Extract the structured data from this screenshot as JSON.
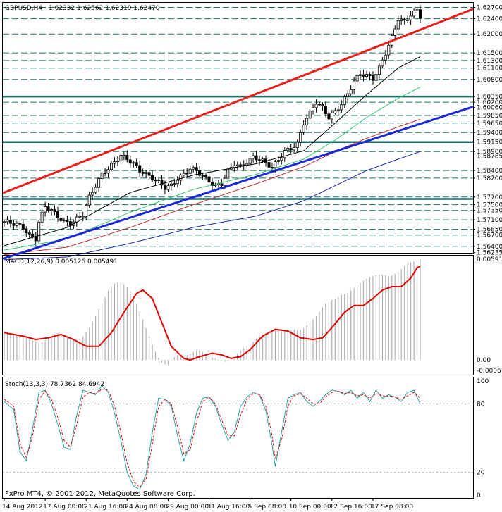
{
  "chart_data": [
    {
      "type": "candlestick",
      "panel": "price",
      "symbol_label": "GBPUSD,H4",
      "ohlc_label": "1.62332 1.62562 1.62319 1.62470",
      "price_axis_labels": [
        "1.62700",
        "1.62400",
        "1.62000",
        "1.61500",
        "1.61300",
        "1.61100",
        "1.60800",
        "1.60350",
        "1.60200",
        "1.60060",
        "1.59850",
        "1.59650",
        "1.59400",
        "1.59150",
        "1.58900",
        "1.58785",
        "1.58400",
        "1.58200",
        "1.57700",
        "1.57500",
        "1.57350",
        "1.57100",
        "1.56850",
        "1.56700",
        "1.56400",
        "1.56235"
      ],
      "ylim": [
        1.5623,
        1.6282
      ],
      "horizontal_levels": [
        1.627,
        1.624,
        1.62,
        1.615,
        1.613,
        1.611,
        1.608,
        1.6035,
        1.602,
        1.5985,
        1.5965,
        1.594,
        1.5915,
        1.589,
        1.584,
        1.582,
        1.577,
        1.575,
        1.5735,
        1.571,
        1.5685,
        1.567,
        1.564
      ],
      "strong_levels": [
        1.6035,
        1.5915,
        1.5765
      ],
      "trendlines": [
        {
          "color": "#e8201a",
          "from": [
            0,
            1.5782
          ],
          "to": [
            132,
            1.6211
          ]
        },
        {
          "color": "#1c28d8",
          "from": [
            8,
            1.563
          ],
          "to": [
            132,
            1.5963
          ]
        }
      ],
      "close_path": [
        [
          0,
          1.5705
        ],
        [
          2,
          1.5702
        ],
        [
          4,
          1.5698
        ],
        [
          6,
          1.569
        ],
        [
          8,
          1.5668
        ],
        [
          10,
          1.566
        ],
        [
          11,
          1.5705
        ],
        [
          13,
          1.5745
        ],
        [
          15,
          1.5735
        ],
        [
          17,
          1.5718
        ],
        [
          19,
          1.5705
        ],
        [
          21,
          1.57
        ],
        [
          23,
          1.5712
        ],
        [
          25,
          1.5725
        ],
        [
          27,
          1.577
        ],
        [
          29,
          1.58
        ],
        [
          31,
          1.583
        ],
        [
          33,
          1.5845
        ],
        [
          35,
          1.5862
        ],
        [
          37,
          1.588
        ],
        [
          39,
          1.587
        ],
        [
          41,
          1.5858
        ],
        [
          43,
          1.584
        ],
        [
          45,
          1.583
        ],
        [
          47,
          1.582
        ],
        [
          49,
          1.581
        ],
        [
          51,
          1.5795
        ],
        [
          53,
          1.58
        ],
        [
          55,
          1.5818
        ],
        [
          57,
          1.583
        ],
        [
          59,
          1.5845
        ],
        [
          61,
          1.584
        ],
        [
          63,
          1.5825
        ],
        [
          65,
          1.5812
        ],
        [
          67,
          1.5798
        ],
        [
          69,
          1.5805
        ],
        [
          71,
          1.5838
        ],
        [
          73,
          1.5858
        ],
        [
          75,
          1.585
        ],
        [
          77,
          1.5862
        ],
        [
          79,
          1.5875
        ],
        [
          81,
          1.587
        ],
        [
          83,
          1.586
        ],
        [
          85,
          1.5848
        ],
        [
          87,
          1.5868
        ],
        [
          89,
          1.589
        ],
        [
          91,
          1.5898
        ],
        [
          93,
          1.591
        ],
        [
          95,
          1.5965
        ],
        [
          97,
          1.5992
        ],
        [
          99,
          1.602
        ],
        [
          101,
          1.6005
        ],
        [
          103,
          1.598
        ],
        [
          105,
          1.5995
        ],
        [
          107,
          1.6015
        ],
        [
          109,
          1.6042
        ],
        [
          111,
          1.6075
        ],
        [
          113,
          1.6095
        ],
        [
          115,
          1.609
        ],
        [
          117,
          1.6082
        ],
        [
          119,
          1.611
        ],
        [
          121,
          1.615
        ],
        [
          123,
          1.619
        ],
        [
          125,
          1.624
        ],
        [
          127,
          1.6232
        ],
        [
          129,
          1.625
        ],
        [
          131,
          1.6262
        ],
        [
          132,
          1.6247
        ]
      ],
      "moving_averages": [
        {
          "color": "#000000",
          "points": [
            [
              0,
              1.5642
            ],
            [
              20,
              1.569
            ],
            [
              40,
              1.5782
            ],
            [
              60,
              1.5828
            ],
            [
              80,
              1.5858
            ],
            [
              95,
              1.5892
            ],
            [
              105,
              1.5965
            ],
            [
              115,
              1.604
            ],
            [
              125,
              1.611
            ],
            [
              132,
              1.614
            ]
          ]
        },
        {
          "color": "#35c46e",
          "points": [
            [
              0,
              1.563
            ],
            [
              20,
              1.566
            ],
            [
              40,
              1.573
            ],
            [
              60,
              1.579
            ],
            [
              80,
              1.583
            ],
            [
              95,
              1.587
            ],
            [
              105,
              1.592
            ],
            [
              115,
              1.598
            ],
            [
              125,
              1.603
            ],
            [
              132,
              1.606
            ]
          ]
        },
        {
          "color": "#c0302a",
          "points": [
            [
              0,
              1.5618
            ],
            [
              20,
              1.5638
            ],
            [
              40,
              1.569
            ],
            [
              60,
              1.575
            ],
            [
              80,
              1.5805
            ],
            [
              95,
              1.585
            ],
            [
              105,
              1.589
            ],
            [
              115,
              1.5925
            ],
            [
              125,
              1.5955
            ],
            [
              132,
              1.5975
            ]
          ]
        },
        {
          "color": "#1c28a8",
          "points": [
            [
              0,
              1.5605
            ],
            [
              20,
              1.5612
            ],
            [
              40,
              1.5648
            ],
            [
              60,
              1.569
            ],
            [
              80,
              1.572
            ],
            [
              95,
              1.576
            ],
            [
              105,
              1.58
            ],
            [
              115,
              1.584
            ],
            [
              125,
              1.587
            ],
            [
              132,
              1.589
            ]
          ]
        }
      ]
    },
    {
      "type": "histogram+line",
      "panel": "macd",
      "indicator_label": "MACD(12,26,9) 0.005126 0.005491",
      "axis_labels": [
        "0.00591",
        "0.00",
        "-0.00061"
      ],
      "ylim": [
        -0.00061,
        0.00591
      ],
      "histogram": [
        0.0017,
        0.0016,
        0.0015,
        0.0014,
        0.0013,
        0.0012,
        0.0011,
        0.001,
        0.0012,
        0.0014,
        0.0016,
        0.0015,
        0.0013,
        0.0012,
        0.0012,
        0.0014,
        0.0018,
        0.0024,
        0.003,
        0.0036,
        0.0042,
        0.0045,
        0.0046,
        0.0044,
        0.004,
        0.0034,
        0.0027,
        0.0018,
        0.001,
        0.0003,
        -0.0002,
        -0.0003,
        0.0001,
        0.0003,
        0.0002,
        0.0003,
        0.0005,
        0.0006,
        0.0004,
        0.0002,
        0.0001,
        0.0,
        -0.0001,
        0.0,
        0.0003,
        0.0006,
        0.0008,
        0.001,
        0.0013,
        0.0015,
        0.0016,
        0.0017,
        0.0018,
        0.0018,
        0.0017,
        0.0018,
        0.0017,
        0.0019,
        0.0022,
        0.0025,
        0.0029,
        0.0033,
        0.0035,
        0.0036,
        0.0038,
        0.0039,
        0.0041,
        0.0044,
        0.0046,
        0.0048,
        0.0049,
        0.005,
        0.005,
        0.0049,
        0.005,
        0.0052,
        0.0055,
        0.0057,
        0.0058,
        0.0059
      ],
      "signal": [
        [
          0,
          0.0016
        ],
        [
          6,
          0.0014
        ],
        [
          10,
          0.0012
        ],
        [
          14,
          0.0013
        ],
        [
          18,
          0.0015
        ],
        [
          22,
          0.0012
        ],
        [
          26,
          0.0008
        ],
        [
          30,
          0.0008
        ],
        [
          34,
          0.0016
        ],
        [
          38,
          0.0028
        ],
        [
          42,
          0.0039
        ],
        [
          44,
          0.0041
        ],
        [
          47,
          0.0036
        ],
        [
          50,
          0.0022
        ],
        [
          53,
          0.0008
        ],
        [
          57,
          0.0001
        ],
        [
          59,
          -0.0
        ],
        [
          62,
          0.0002
        ],
        [
          66,
          0.0004
        ],
        [
          69,
          0.0003
        ],
        [
          72,
          0.0001
        ],
        [
          75,
          0.0002
        ],
        [
          78,
          0.0006
        ],
        [
          82,
          0.0014
        ],
        [
          86,
          0.0018
        ],
        [
          90,
          0.0017
        ],
        [
          94,
          0.0013
        ],
        [
          98,
          0.0012
        ],
        [
          101,
          0.0013
        ],
        [
          104,
          0.0019
        ],
        [
          108,
          0.0028
        ],
        [
          111,
          0.0032
        ],
        [
          114,
          0.0032
        ],
        [
          117,
          0.0036
        ],
        [
          120,
          0.0041
        ],
        [
          123,
          0.0043
        ],
        [
          126,
          0.0043
        ],
        [
          129,
          0.0048
        ],
        [
          131,
          0.0054
        ],
        [
          132,
          0.0055
        ]
      ]
    },
    {
      "type": "line",
      "panel": "stochastic",
      "indicator_label": "Stoch(13,3,3) 78.7362 84.6942",
      "axis_labels": [
        "100",
        "80",
        "20",
        "0"
      ],
      "ylim": [
        0,
        100
      ],
      "reference_levels": [
        80,
        20
      ],
      "main": [
        [
          0,
          82
        ],
        [
          3,
          75
        ],
        [
          5,
          38
        ],
        [
          7,
          30
        ],
        [
          9,
          58
        ],
        [
          11,
          90
        ],
        [
          13,
          92
        ],
        [
          15,
          80
        ],
        [
          17,
          62
        ],
        [
          19,
          42
        ],
        [
          21,
          40
        ],
        [
          23,
          70
        ],
        [
          25,
          92
        ],
        [
          27,
          90
        ],
        [
          29,
          88
        ],
        [
          31,
          96
        ],
        [
          33,
          90
        ],
        [
          35,
          72
        ],
        [
          37,
          48
        ],
        [
          39,
          20
        ],
        [
          41,
          8
        ],
        [
          43,
          5
        ],
        [
          45,
          18
        ],
        [
          47,
          55
        ],
        [
          49,
          85
        ],
        [
          51,
          84
        ],
        [
          53,
          78
        ],
        [
          55,
          52
        ],
        [
          57,
          30
        ],
        [
          59,
          45
        ],
        [
          61,
          72
        ],
        [
          63,
          85
        ],
        [
          65,
          86
        ],
        [
          67,
          78
        ],
        [
          69,
          62
        ],
        [
          71,
          48
        ],
        [
          73,
          55
        ],
        [
          75,
          78
        ],
        [
          77,
          86
        ],
        [
          79,
          90
        ],
        [
          81,
          88
        ],
        [
          83,
          74
        ],
        [
          85,
          44
        ],
        [
          86,
          25
        ],
        [
          88,
          55
        ],
        [
          90,
          85
        ],
        [
          92,
          88
        ],
        [
          94,
          90
        ],
        [
          96,
          82
        ],
        [
          98,
          78
        ],
        [
          100,
          82
        ],
        [
          102,
          88
        ],
        [
          104,
          92
        ],
        [
          106,
          91
        ],
        [
          108,
          88
        ],
        [
          110,
          92
        ],
        [
          112,
          85
        ],
        [
          114,
          90
        ],
        [
          116,
          82
        ],
        [
          118,
          92
        ],
        [
          120,
          85
        ],
        [
          122,
          88
        ],
        [
          124,
          86
        ],
        [
          126,
          82
        ],
        [
          128,
          90
        ],
        [
          130,
          92
        ],
        [
          132,
          80
        ]
      ],
      "signal": [
        [
          0,
          84
        ],
        [
          3,
          78
        ],
        [
          5,
          45
        ],
        [
          7,
          33
        ],
        [
          9,
          52
        ],
        [
          11,
          84
        ],
        [
          13,
          91
        ],
        [
          15,
          84
        ],
        [
          17,
          68
        ],
        [
          19,
          48
        ],
        [
          21,
          42
        ],
        [
          23,
          62
        ],
        [
          25,
          86
        ],
        [
          27,
          90
        ],
        [
          29,
          89
        ],
        [
          31,
          93
        ],
        [
          33,
          92
        ],
        [
          35,
          78
        ],
        [
          37,
          55
        ],
        [
          39,
          28
        ],
        [
          41,
          12
        ],
        [
          43,
          7
        ],
        [
          45,
          14
        ],
        [
          47,
          45
        ],
        [
          49,
          78
        ],
        [
          51,
          84
        ],
        [
          53,
          80
        ],
        [
          55,
          60
        ],
        [
          57,
          36
        ],
        [
          59,
          40
        ],
        [
          61,
          64
        ],
        [
          63,
          82
        ],
        [
          65,
          86
        ],
        [
          67,
          80
        ],
        [
          69,
          66
        ],
        [
          71,
          52
        ],
        [
          73,
          52
        ],
        [
          75,
          70
        ],
        [
          77,
          84
        ],
        [
          79,
          89
        ],
        [
          81,
          88
        ],
        [
          83,
          78
        ],
        [
          85,
          52
        ],
        [
          86,
          32
        ],
        [
          88,
          48
        ],
        [
          90,
          78
        ],
        [
          92,
          87
        ],
        [
          94,
          89
        ],
        [
          96,
          85
        ],
        [
          98,
          80
        ],
        [
          100,
          80
        ],
        [
          102,
          86
        ],
        [
          104,
          90
        ],
        [
          106,
          91
        ],
        [
          108,
          89
        ],
        [
          110,
          90
        ],
        [
          112,
          87
        ],
        [
          114,
          88
        ],
        [
          116,
          85
        ],
        [
          118,
          89
        ],
        [
          120,
          87
        ],
        [
          122,
          87
        ],
        [
          124,
          86
        ],
        [
          126,
          84
        ],
        [
          128,
          87
        ],
        [
          130,
          90
        ],
        [
          132,
          85
        ]
      ]
    }
  ],
  "time_axis_labels": [
    "14 Aug 2012",
    "17 Aug 00:00",
    "21 Aug 16:00",
    "24 Aug 08:00",
    "29 Aug 00:00",
    "31 Aug 16:00",
    "5 Sep 08:00",
    "10 Sep 00:00",
    "12 Sep 16:00",
    "17 Sep 08:00"
  ],
  "time_axis_bar_index": [
    0,
    13,
    26,
    39,
    52,
    65,
    78,
    91,
    104,
    117
  ],
  "copyright": "FxPro MT4, © 2001-2012, MetaQuotes Software Corp.",
  "colors": {
    "background": "#ffffff",
    "grid_dash": "#1f6f6a",
    "strong_level": "#1d6d68",
    "bull_candle": "#ffffff",
    "bear_candle": "#000000",
    "candle_outline": "#000000",
    "macd_hist": "#b0b0b0",
    "macd_signal": "#e00000",
    "stoch_main": "#2aa0a0",
    "stoch_signal": "#e00000"
  }
}
